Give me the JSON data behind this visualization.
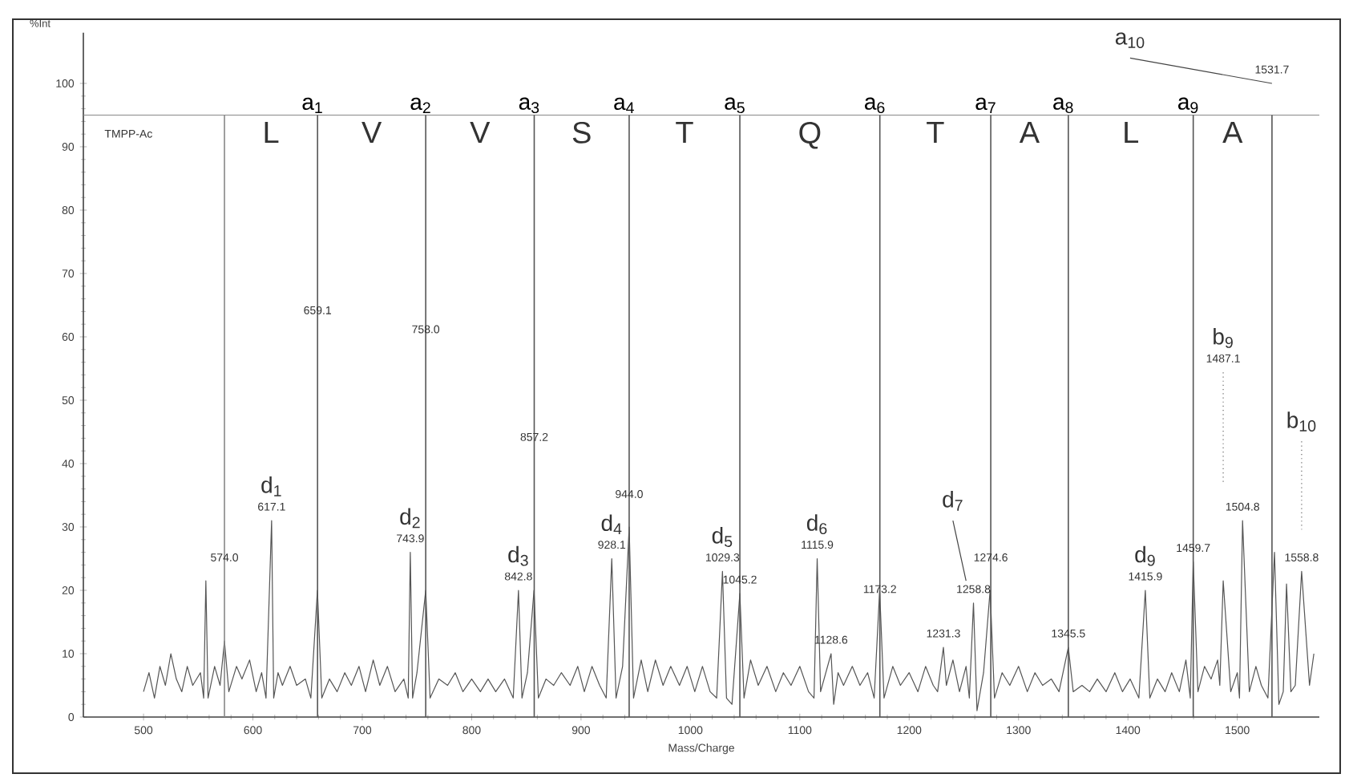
{
  "chart_data": {
    "type": "line",
    "xlabel": "Mass/Charge",
    "ylabel": "%Int",
    "xlim": [
      445,
      1575
    ],
    "ylim": [
      0,
      108
    ],
    "xticks": [
      500,
      600,
      700,
      800,
      900,
      1000,
      1100,
      1200,
      1300,
      1400,
      1500
    ],
    "yticks": [
      0,
      10,
      20,
      30,
      40,
      50,
      60,
      70,
      80,
      90,
      100
    ],
    "series": [
      {
        "color": "#555555",
        "line_style": "solid",
        "x": [
          500,
          505,
          510,
          515,
          520,
          525,
          530,
          535,
          540,
          545,
          552,
          555,
          557,
          559,
          565,
          570,
          574,
          578,
          585,
          590,
          597,
          603,
          608,
          612,
          617.1,
          619,
          623,
          627,
          634,
          640,
          648,
          653,
          659,
          663,
          670,
          677,
          684,
          690,
          697,
          703,
          710,
          716,
          723,
          730,
          738,
          742,
          743.9,
          746,
          750,
          758,
          762,
          770,
          778,
          785,
          792,
          800,
          808,
          815,
          822,
          830,
          838,
          842.8,
          846,
          851,
          857,
          861,
          868,
          875,
          882,
          890,
          897,
          903,
          910,
          917,
          923,
          928.1,
          932,
          938,
          944.0,
          948,
          955,
          961,
          968,
          975,
          982,
          990,
          997,
          1004,
          1011,
          1018,
          1024,
          1029.3,
          1033,
          1038,
          1045.2,
          1049,
          1055,
          1062,
          1070,
          1078,
          1085,
          1092,
          1100,
          1108,
          1113,
          1115.9,
          1119,
          1128.6,
          1131,
          1135,
          1140,
          1148,
          1155,
          1162,
          1168,
          1173,
          1177,
          1185,
          1192,
          1200,
          1208,
          1215,
          1222,
          1226,
          1231.3,
          1234,
          1240,
          1246,
          1252,
          1255,
          1258.8,
          1262,
          1268,
          1274,
          1278,
          1285,
          1292,
          1300,
          1308,
          1315,
          1322,
          1330,
          1337,
          1345.5,
          1350,
          1358,
          1365,
          1372,
          1380,
          1388,
          1395,
          1402,
          1410,
          1415.9,
          1420,
          1427,
          1434,
          1440,
          1447,
          1453,
          1457,
          1459.7,
          1464,
          1470,
          1476,
          1482,
          1484,
          1487.1,
          1494,
          1500,
          1502,
          1504.8,
          1511,
          1517,
          1522,
          1528,
          1534,
          1538,
          1542,
          1545,
          1549,
          1553,
          1558.8,
          1566,
          1570
        ],
        "values": [
          4,
          7,
          3,
          8,
          5,
          10,
          6,
          4,
          8,
          5,
          7,
          3,
          21.5,
          3,
          8,
          5,
          12,
          4,
          8,
          6,
          9,
          4,
          7,
          3,
          31,
          3,
          7,
          5,
          8,
          5,
          6,
          3,
          20,
          3,
          6,
          4,
          7,
          5,
          8,
          4,
          9,
          5,
          8,
          4,
          6,
          3,
          26,
          3,
          7,
          20,
          3,
          6,
          5,
          7,
          4,
          6,
          4,
          6,
          4,
          6,
          3,
          20,
          3,
          7,
          20,
          3,
          6,
          5,
          7,
          5,
          8,
          4,
          8,
          5,
          3,
          25,
          3,
          8,
          30,
          3,
          9,
          4,
          9,
          5,
          8,
          5,
          8,
          4,
          8,
          4,
          3,
          23,
          3,
          2,
          19.5,
          3,
          9,
          5,
          8,
          4,
          7,
          5,
          8,
          4,
          3,
          25,
          4,
          10,
          2,
          7,
          5,
          8,
          5,
          7,
          3,
          20,
          3,
          8,
          5,
          7,
          4,
          8,
          5,
          4,
          11,
          5,
          9,
          4,
          8,
          3,
          18,
          1,
          7,
          20,
          3,
          7,
          5,
          8,
          4,
          7,
          5,
          6,
          4,
          11,
          4,
          5,
          4,
          6,
          4,
          7,
          4,
          6,
          3,
          20,
          3,
          6,
          4,
          7,
          4,
          9,
          3,
          24.5,
          4,
          8,
          6,
          9,
          5,
          21.5,
          4,
          7,
          3,
          31,
          4,
          8,
          5,
          3,
          26,
          2,
          4,
          21,
          4,
          5,
          23,
          5,
          10
        ]
      },
      {
        "color": "#444444",
        "line_style": "solid",
        "x": [
          1240,
          1252
        ],
        "values": [
          31,
          21.5
        ]
      },
      {
        "color": "#666666",
        "line_style": "dotted",
        "x": [
          1487.1,
          1487.1
        ],
        "values": [
          54.4,
          37
        ]
      },
      {
        "color": "#666666",
        "line_style": "dotted",
        "x": [
          1558.8,
          1558.8
        ],
        "values": [
          43.5,
          29.6
        ]
      },
      {
        "color": "#444444",
        "line_style": "solid",
        "x": [
          1402,
          1531.7
        ],
        "values": [
          104,
          100
        ]
      }
    ],
    "ref_lines": [
      {
        "axis": "y",
        "value": 95,
        "color": "#888888"
      },
      {
        "axis": "x",
        "value": 574.0,
        "color": "#888888"
      },
      {
        "axis": "x",
        "value": 659.1,
        "label": "a$_{1}$",
        "color": "#555555"
      },
      {
        "axis": "x",
        "value": 758.0,
        "label": "a$_{2}$",
        "color": "#555555"
      },
      {
        "axis": "x",
        "value": 857.2,
        "label": "a$_{3}$",
        "color": "#555555"
      },
      {
        "axis": "x",
        "value": 944.0,
        "label": "a$_{4}$",
        "color": "#555555"
      },
      {
        "axis": "x",
        "value": 1045.2,
        "label": "a$_{5}$",
        "color": "#555555"
      },
      {
        "axis": "x",
        "value": 1173.2,
        "label": "a$_{6}$",
        "color": "#555555"
      },
      {
        "axis": "x",
        "value": 1274.6,
        "label": "a$_{7}$",
        "color": "#555555"
      },
      {
        "axis": "x",
        "value": 1345.5,
        "label": "a$_{8}$",
        "color": "#555555"
      },
      {
        "axis": "x",
        "value": 1459.7,
        "label": "a$_{9}$",
        "color": "#555555"
      },
      {
        "axis": "x",
        "value": 1531.7,
        "color": "#555555"
      }
    ],
    "annotations": [
      "TMPP-Ac",
      "L",
      "V",
      "V",
      "S",
      "T",
      "Q",
      "T",
      "A",
      "L",
      "A",
      {
        "text": "574.0",
        "x": 574.0,
        "y": 23
      },
      {
        "text": "617.1",
        "x": 617.1,
        "y": 31
      },
      {
        "text": "d$_{1}$",
        "x": 617.1,
        "y": 31
      },
      {
        "text": "659.1",
        "x": 659.1,
        "y": 62
      },
      {
        "text": "758.0",
        "x": 758.0,
        "y": 59
      },
      {
        "text": "743.9",
        "x": 743.9,
        "y": 26
      },
      {
        "text": "d$_{2}$",
        "x": 743.9,
        "y": 26
      },
      {
        "text": "857.2",
        "x": 857.2,
        "y": 42
      },
      {
        "text": "842.8",
        "x": 842.8,
        "y": 20
      },
      {
        "text": "d$_{3}$",
        "x": 842.8,
        "y": 20
      },
      {
        "text": "944.0",
        "x": 944.0,
        "y": 33
      },
      {
        "text": "928.1",
        "x": 928.1,
        "y": 25
      },
      {
        "text": "d$_{4}$",
        "x": 928.1,
        "y": 25
      },
      {
        "text": "1029.3",
        "x": 1029.3,
        "y": 23
      },
      {
        "text": "d$_{5}$",
        "x": 1029.3,
        "y": 23
      },
      {
        "text": "1045.2",
        "x": 1045.2,
        "y": 19.5
      },
      {
        "text": "1115.9",
        "x": 1115.9,
        "y": 25
      },
      {
        "text": "d$_{6}$",
        "x": 1115.9,
        "y": 25
      },
      {
        "text": "1128.6",
        "x": 1128.6,
        "y": 10
      },
      {
        "text": "1173.2",
        "x": 1173.2,
        "y": 18
      },
      {
        "text": "d$_{7}$",
        "x": 1240,
        "y": 31
      },
      {
        "text": "1258.8",
        "x": 1258.8,
        "y": 18
      },
      {
        "text": "1231.3",
        "x": 1231.3,
        "y": 11
      },
      {
        "text": "1274.6",
        "x": 1274.6,
        "y": 23
      },
      {
        "text": "1345.5",
        "x": 1345.5,
        "y": 11
      },
      {
        "text": "1415.9",
        "x": 1415.9,
        "y": 20
      },
      {
        "text": "d$_{9}$",
        "x": 1415.9,
        "y": 20
      },
      {
        "text": "1459.7",
        "x": 1459.7,
        "y": 24.5
      },
      {
        "text": "1487.1",
        "x": 1487.1,
        "y": 54.4
      },
      {
        "text": "b$_{9}$",
        "x": 1487.1,
        "y": 54.4
      },
      {
        "text": "1504.8",
        "x": 1504.8,
        "y": 31
      },
      {
        "text": "1558.8",
        "x": 1558.8,
        "y": 23
      },
      {
        "text": "b$_{10}$",
        "x": 1558.8,
        "y": 43.5
      },
      {
        "text": "a$_{10}$",
        "x": 1402,
        "y": 104
      },
      {
        "text": "1531.7",
        "x": 1531.7,
        "y": 100
      }
    ]
  }
}
